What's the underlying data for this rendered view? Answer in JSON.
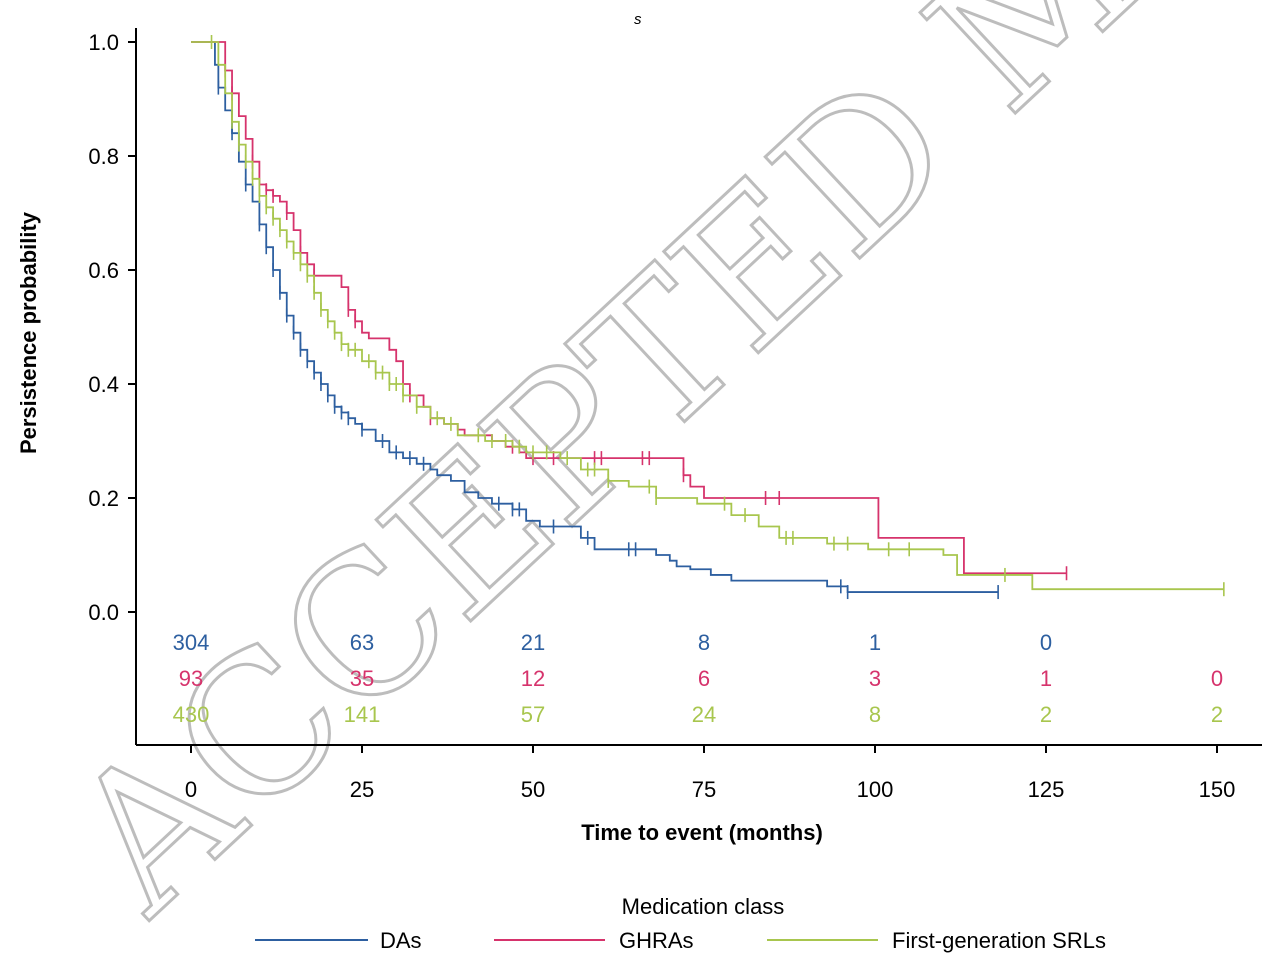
{
  "header_fragment": "s",
  "watermark": "ACCEPTED MANUSCRIPT",
  "chart_data": {
    "type": "line",
    "title": "",
    "xlabel": "Time to event (months)",
    "ylabel": "Persistence probability",
    "xlim": [
      0,
      150
    ],
    "ylim": [
      0,
      1.0
    ],
    "x_ticks": [
      0,
      25,
      50,
      75,
      100,
      125,
      150
    ],
    "x_tick_labels": [
      "0",
      "25",
      "50",
      "75",
      "100",
      "125",
      "150"
    ],
    "y_ticks": [
      0,
      0.2,
      0.4,
      0.6,
      0.8,
      1.0
    ],
    "y_tick_labels": [
      "0.0",
      "0.2",
      "0.4",
      "0.6",
      "0.8",
      "1.0"
    ],
    "grid": false,
    "legend_title": "Medication class",
    "legend_position": "bottom",
    "series": [
      {
        "name": "DAs",
        "color": "#2d5fa0",
        "steps": [
          [
            0,
            1.0
          ],
          [
            3,
            1.0
          ],
          [
            3.5,
            0.96
          ],
          [
            4,
            0.92
          ],
          [
            5,
            0.88
          ],
          [
            6,
            0.84
          ],
          [
            7,
            0.79
          ],
          [
            8,
            0.75
          ],
          [
            9,
            0.72
          ],
          [
            10,
            0.68
          ],
          [
            11,
            0.64
          ],
          [
            12,
            0.6
          ],
          [
            13,
            0.56
          ],
          [
            14,
            0.52
          ],
          [
            15,
            0.49
          ],
          [
            16,
            0.46
          ],
          [
            17,
            0.44
          ],
          [
            18,
            0.42
          ],
          [
            19,
            0.4
          ],
          [
            20,
            0.38
          ],
          [
            21,
            0.36
          ],
          [
            22,
            0.35
          ],
          [
            23,
            0.34
          ],
          [
            24,
            0.33
          ],
          [
            25,
            0.32
          ],
          [
            27,
            0.3
          ],
          [
            29,
            0.28
          ],
          [
            31,
            0.27
          ],
          [
            33,
            0.26
          ],
          [
            35,
            0.25
          ],
          [
            36,
            0.24
          ],
          [
            38,
            0.23
          ],
          [
            40,
            0.21
          ],
          [
            42,
            0.2
          ],
          [
            44,
            0.19
          ],
          [
            47,
            0.18
          ],
          [
            49,
            0.16
          ],
          [
            51,
            0.15
          ],
          [
            57,
            0.13
          ],
          [
            59,
            0.11
          ],
          [
            68,
            0.1
          ],
          [
            70,
            0.09
          ],
          [
            71,
            0.08
          ],
          [
            73,
            0.075
          ],
          [
            76,
            0.065
          ],
          [
            79,
            0.055
          ],
          [
            93,
            0.045
          ],
          [
            96,
            0.035
          ],
          [
            118,
            0.035
          ]
        ],
        "censor_x": [
          4,
          6,
          8,
          10,
          11,
          12,
          13,
          14,
          15,
          16,
          17,
          18,
          19,
          20,
          21,
          22,
          23,
          25,
          28,
          30,
          32,
          34,
          45,
          47,
          48,
          53,
          58,
          64,
          65,
          95,
          96,
          118
        ],
        "at_risk": [
          304,
          63,
          21,
          8,
          1,
          0
        ]
      },
      {
        "name": "GHRAs",
        "color": "#d6336c",
        "steps": [
          [
            0,
            1.0
          ],
          [
            4,
            1.0
          ],
          [
            5,
            0.95
          ],
          [
            6,
            0.91
          ],
          [
            7,
            0.87
          ],
          [
            8,
            0.83
          ],
          [
            9,
            0.79
          ],
          [
            10,
            0.75
          ],
          [
            11,
            0.74
          ],
          [
            12,
            0.73
          ],
          [
            13,
            0.72
          ],
          [
            14,
            0.7
          ],
          [
            15,
            0.67
          ],
          [
            16,
            0.63
          ],
          [
            17,
            0.61
          ],
          [
            18,
            0.59
          ],
          [
            22,
            0.57
          ],
          [
            23,
            0.53
          ],
          [
            24,
            0.51
          ],
          [
            25,
            0.49
          ],
          [
            26,
            0.48
          ],
          [
            29,
            0.46
          ],
          [
            30,
            0.44
          ],
          [
            31,
            0.4
          ],
          [
            32,
            0.38
          ],
          [
            34,
            0.36
          ],
          [
            35,
            0.34
          ],
          [
            37,
            0.33
          ],
          [
            39,
            0.32
          ],
          [
            40,
            0.31
          ],
          [
            44,
            0.3
          ],
          [
            46,
            0.29
          ],
          [
            48,
            0.28
          ],
          [
            49,
            0.27
          ],
          [
            72,
            0.24
          ],
          [
            73,
            0.22
          ],
          [
            75,
            0.2
          ],
          [
            100.5,
            0.13
          ],
          [
            113,
            0.068
          ],
          [
            128,
            0.068
          ]
        ],
        "censor_x": [
          5,
          6,
          9,
          11,
          12,
          14,
          16,
          18,
          23,
          24,
          32,
          35,
          47,
          50,
          53,
          59,
          60,
          66,
          67,
          72,
          84,
          86,
          128
        ],
        "at_risk": [
          93,
          35,
          12,
          6,
          3,
          1,
          0
        ]
      },
      {
        "name": "First-generation SRLs",
        "color": "#a8c64e",
        "steps": [
          [
            0,
            1.0
          ],
          [
            3,
            1.0
          ],
          [
            4,
            0.96
          ],
          [
            5,
            0.91
          ],
          [
            6,
            0.86
          ],
          [
            7,
            0.82
          ],
          [
            8,
            0.79
          ],
          [
            9,
            0.76
          ],
          [
            10,
            0.73
          ],
          [
            11,
            0.71
          ],
          [
            12,
            0.69
          ],
          [
            13,
            0.67
          ],
          [
            14,
            0.65
          ],
          [
            15,
            0.63
          ],
          [
            16,
            0.61
          ],
          [
            17,
            0.59
          ],
          [
            18,
            0.56
          ],
          [
            19,
            0.53
          ],
          [
            20,
            0.51
          ],
          [
            21,
            0.49
          ],
          [
            22,
            0.47
          ],
          [
            23,
            0.46
          ],
          [
            25,
            0.44
          ],
          [
            27,
            0.42
          ],
          [
            29,
            0.4
          ],
          [
            31,
            0.38
          ],
          [
            33,
            0.36
          ],
          [
            35,
            0.34
          ],
          [
            37,
            0.33
          ],
          [
            39,
            0.31
          ],
          [
            43,
            0.3
          ],
          [
            47,
            0.29
          ],
          [
            49,
            0.28
          ],
          [
            54,
            0.27
          ],
          [
            57,
            0.25
          ],
          [
            61,
            0.23
          ],
          [
            64,
            0.22
          ],
          [
            68,
            0.2
          ],
          [
            74,
            0.19
          ],
          [
            79,
            0.17
          ],
          [
            83,
            0.15
          ],
          [
            86,
            0.13
          ],
          [
            93,
            0.12
          ],
          [
            99,
            0.11
          ],
          [
            110,
            0.1
          ],
          [
            112,
            0.065
          ],
          [
            123,
            0.04
          ],
          [
            151,
            0.04
          ]
        ],
        "censor_x": [
          3,
          6,
          7,
          8,
          9,
          10,
          11,
          12,
          13,
          14,
          15,
          16,
          17,
          18,
          19,
          20,
          21,
          22,
          23,
          24,
          26,
          27,
          28,
          29,
          30,
          31,
          33,
          36,
          38,
          42,
          44,
          46,
          48,
          50,
          52,
          55,
          58,
          59,
          61,
          67,
          68,
          78,
          81,
          87,
          88,
          94,
          96,
          102,
          105,
          119,
          151
        ],
        "at_risk": [
          430,
          141,
          57,
          24,
          8,
          2,
          2
        ]
      }
    ]
  }
}
